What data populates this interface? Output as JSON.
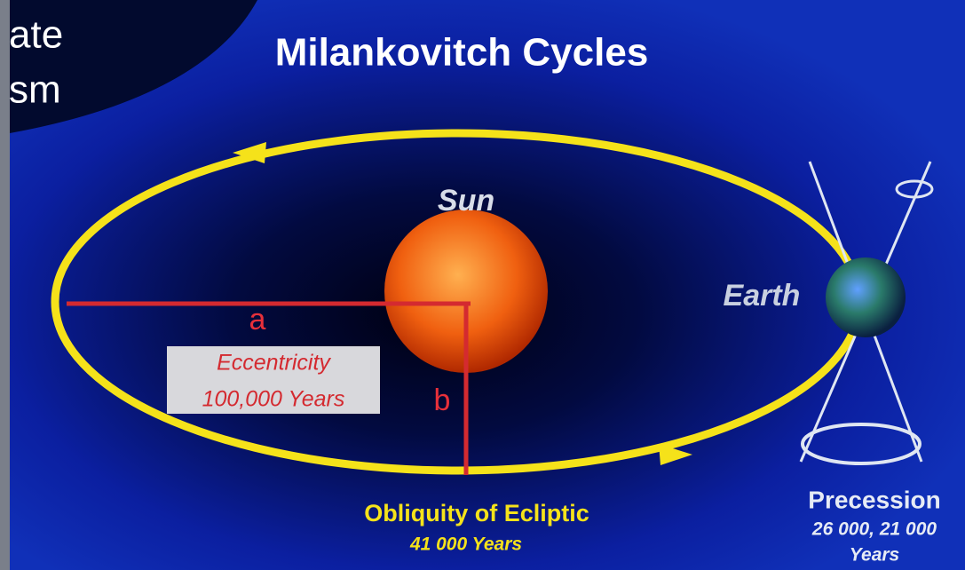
{
  "corner": {
    "line1": "ate",
    "line2": "sm"
  },
  "title": "Milankovitch Cycles",
  "sun": "Sun",
  "earth": "Earth",
  "axes": {
    "a": "a",
    "b": "b"
  },
  "eccentricity": {
    "name": "Eccentricity",
    "period": "100,000 Years"
  },
  "obliquity": {
    "name": "Obliquity of Ecliptic",
    "period": "41 000 Years"
  },
  "precession": {
    "name": "Precession",
    "period": "26 000, 21 000",
    "unit": "Years"
  }
}
